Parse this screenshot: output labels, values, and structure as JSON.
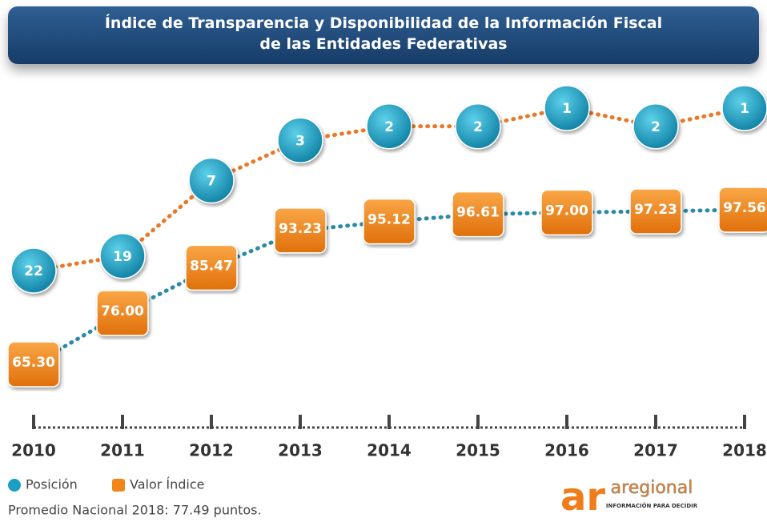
{
  "chart_data": {
    "type": "line",
    "title": "Índice de Transparencia y Disponibilidad de la Información Fiscal de las Entidades Federativas",
    "categories": [
      "2010",
      "2011",
      "2012",
      "2013",
      "2014",
      "2015",
      "2016",
      "2017",
      "2018"
    ],
    "series": [
      {
        "name": "Posición",
        "color": "#1ba0c4",
        "line_color": "#e8792a",
        "values": [
          22,
          19,
          7,
          3,
          2,
          2,
          1,
          2,
          1
        ]
      },
      {
        "name": "Valor Índice",
        "color": "#f0861a",
        "line_color": "#2a8aa8",
        "values": [
          65.3,
          76,
          85.47,
          93.23,
          95.12,
          96.61,
          97,
          97.23,
          97.56
        ],
        "value_labels": [
          "65.30",
          "76.00",
          "85.47",
          "93.23",
          "95.12",
          "96.61",
          "97.00",
          "97.23",
          "97.56"
        ]
      }
    ],
    "legend": "bottom-left",
    "note": "Promedio Nacional 2018: 77.49 puntos."
  },
  "logo": {
    "mark": "ar",
    "name": "aregional",
    "tagline": "INFORMACIÓN PARA DECIDIR"
  }
}
